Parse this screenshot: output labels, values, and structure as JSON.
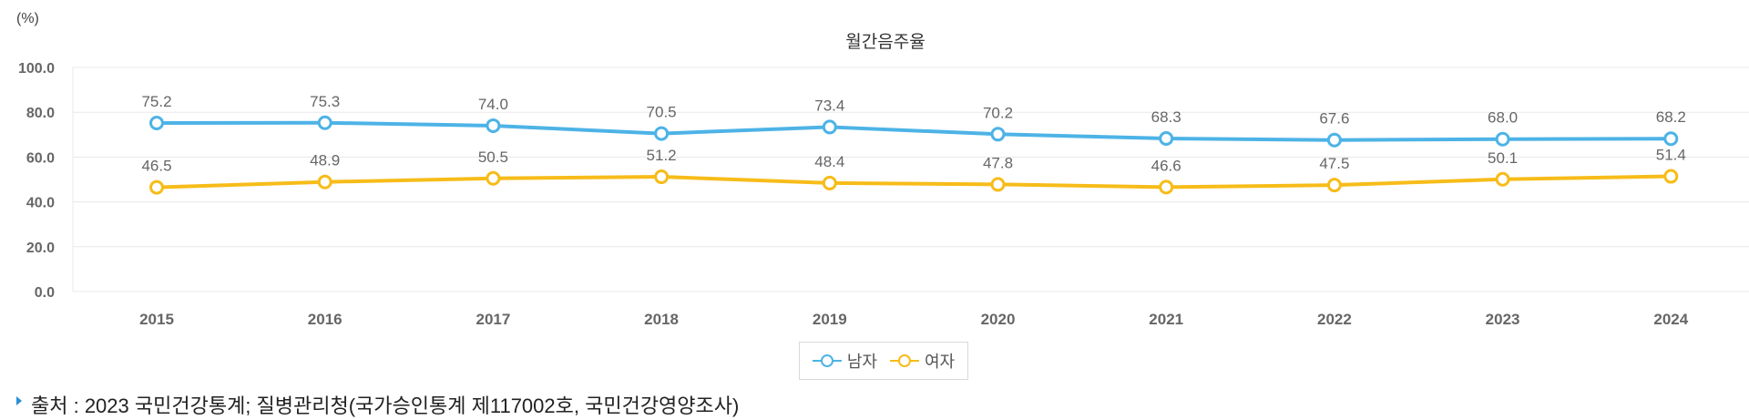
{
  "chart_data": {
    "type": "line",
    "title": "월간음주율",
    "unit_label": "(%)",
    "categories": [
      "2015",
      "2016",
      "2017",
      "2018",
      "2019",
      "2020",
      "2021",
      "2022",
      "2023",
      "2024"
    ],
    "series": [
      {
        "name": "남자",
        "color": "#4db3e6",
        "values": [
          75.2,
          75.3,
          74.0,
          70.5,
          73.4,
          70.2,
          68.3,
          67.6,
          68.0,
          68.2
        ],
        "labels": [
          "75.2",
          "75.3",
          "74.0",
          "70.5",
          "73.4",
          "70.2",
          "68.3",
          "67.6",
          "68.0",
          "68.2"
        ]
      },
      {
        "name": "여자",
        "color": "#f7bc19",
        "values": [
          46.5,
          48.9,
          50.5,
          51.2,
          48.4,
          47.8,
          46.6,
          47.5,
          50.1,
          51.4
        ],
        "labels": [
          "46.5",
          "48.9",
          "50.5",
          "51.2",
          "48.4",
          "47.8",
          "46.6",
          "47.5",
          "50.1",
          "51.4"
        ]
      }
    ],
    "ylim": [
      0,
      100
    ],
    "yticks": [
      "0.0",
      "20.0",
      "40.0",
      "60.0",
      "80.0",
      "100.0"
    ],
    "grid": true,
    "legend": "bottom-center"
  },
  "source": {
    "text": "출처 : 2023 국민건강통계; 질병관리청(국가승인통계 제117002호, 국민건강영양조사)"
  }
}
